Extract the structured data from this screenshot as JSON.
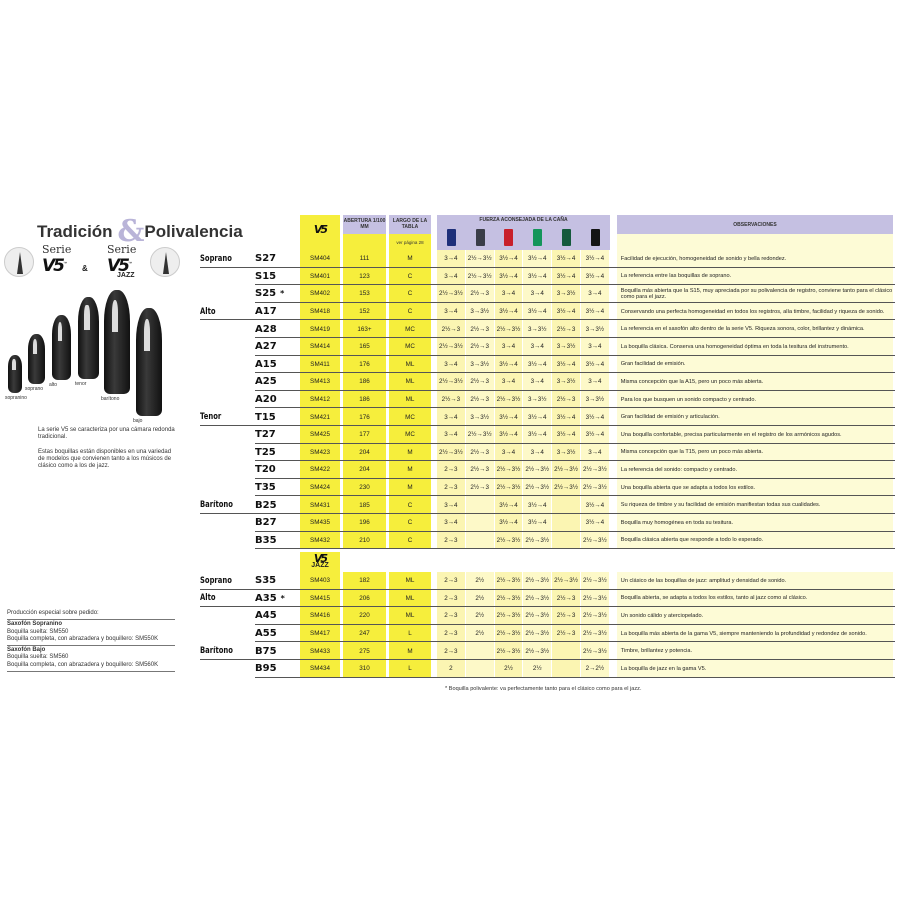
{
  "title": {
    "left": "Tradición",
    "amp": "&",
    "right": "Polivalencia"
  },
  "series": [
    {
      "serie": "Serie",
      "logo": "V5",
      "tm": "™",
      "jazz": ""
    },
    {
      "serie": "Serie",
      "logo": "V5",
      "tm": "™",
      "jazz": "JAZZ"
    }
  ],
  "series_join": "&",
  "mouthpieces": [
    "sopranino",
    "soprano",
    "alto",
    "tenor",
    "barítono",
    "bajo"
  ],
  "intro": [
    "La serie V5 se caracteriza por una cámara redonda tradicional.",
    "Estas boquillas están disponibles en una variedad de modelos que convienen tanto a los músicos de clásico como a los de jazz."
  ],
  "special": {
    "heading": "Producción especial sobre pedido:",
    "items": [
      {
        "name": "Saxofón Sopranino",
        "lines": [
          "Boquilla suelta: SM550",
          "Boquilla completa, con abrazadera y boquillero: SM550K"
        ]
      },
      {
        "name": "Saxofón Bajo",
        "lines": [
          "Boquilla suelta: SM560",
          "Boquilla completa, con abrazadera y boquillero: SM560K"
        ]
      }
    ]
  },
  "header": {
    "logo": "V5",
    "abertura": "ABERTURA 1/100 MM",
    "largo": "LARGO DE LA TABLA",
    "largo_note": "ver página 28",
    "fuerza": "FUERZA ACONSEJADA DE LA CAÑA",
    "observaciones": "OBSERVACIONES",
    "reeds": [
      {
        "icon": "reed-box-blue-icon",
        "color": "#1e2f7a"
      },
      {
        "icon": "reed-box-grey-icon",
        "color": "#3a3d48"
      },
      {
        "icon": "reed-box-red-icon",
        "color": "#c8202a"
      },
      {
        "icon": "reed-box-green-icon",
        "color": "#14955a"
      },
      {
        "icon": "reed-box-darkgreen-icon",
        "color": "#155a3c"
      },
      {
        "icon": "reed-box-black-icon",
        "color": "#141414"
      }
    ]
  },
  "rows": [
    {
      "family": "Soprano",
      "model": "S27",
      "star": "",
      "ref": "SM404",
      "ab": "111",
      "lg": "M",
      "reeds": [
        "3→4",
        "2½→3½",
        "3½→4",
        "3½→4",
        "3½→4",
        "3½→4"
      ],
      "obs": "Facilidad de ejecución, homogeneidad de sonido y bella redondez."
    },
    {
      "family": "",
      "model": "S15",
      "star": "",
      "ref": "SM401",
      "ab": "123",
      "lg": "C",
      "reeds": [
        "3→4",
        "2½→3½",
        "3½→4",
        "3½→4",
        "3½→4",
        "3½→4"
      ],
      "obs": "La referencia entre las boquillas de soprano."
    },
    {
      "family": "",
      "model": "S25",
      "star": "*",
      "ref": "SM402",
      "ab": "153",
      "lg": "C",
      "reeds": [
        "2½→3½",
        "2½→3",
        "3→4",
        "3→4",
        "3→3½",
        "3→4"
      ],
      "obs": "Boquilla más abierta que la S15, muy apreciada por su polivalencia de registro, conviene tanto para el clásico como para el jazz."
    },
    {
      "family": "Alto",
      "model": "A17",
      "star": "",
      "ref": "SM418",
      "ab": "152",
      "lg": "C",
      "reeds": [
        "3→4",
        "3→3½",
        "3½→4",
        "3½→4",
        "3½→4",
        "3½→4"
      ],
      "obs": "Conservando una perfecta homogeneidad en todos los registros, alía timbre, facilidad y riqueza de sonido."
    },
    {
      "family": "",
      "model": "A28",
      "star": "",
      "ref": "SM419",
      "ab": "163+",
      "lg": "MC",
      "reeds": [
        "2½→3",
        "2½→3",
        "2½→3½",
        "3→3½",
        "2½→3",
        "3→3½"
      ],
      "obs": "La referencia en el saxofón alto dentro de la serie V5. Riqueza sonora, color, brillantez y dinámica."
    },
    {
      "family": "",
      "model": "A27",
      "star": "",
      "ref": "SM414",
      "ab": "165",
      "lg": "MC",
      "reeds": [
        "2½→3½",
        "2½→3",
        "3→4",
        "3→4",
        "3→3½",
        "3→4"
      ],
      "obs": "La boquilla clásica. Conserva una homogeneidad óptima en toda la tesitura del instrumento."
    },
    {
      "family": "",
      "model": "A15",
      "star": "",
      "ref": "SM411",
      "ab": "176",
      "lg": "ML",
      "reeds": [
        "3→4",
        "3→3½",
        "3½→4",
        "3½→4",
        "3½→4",
        "3½→4"
      ],
      "obs": "Gran facilidad de emisión."
    },
    {
      "family": "",
      "model": "A25",
      "star": "",
      "ref": "SM413",
      "ab": "186",
      "lg": "ML",
      "reeds": [
        "2½→3½",
        "2½→3",
        "3→4",
        "3→4",
        "3→3½",
        "3→4"
      ],
      "obs": "Misma concepción que la A15, pero un poco más abierta."
    },
    {
      "family": "",
      "model": "A20",
      "star": "",
      "ref": "SM412",
      "ab": "186",
      "lg": "ML",
      "reeds": [
        "2½→3",
        "2½→3",
        "2½→3½",
        "3→3½",
        "2½→3",
        "3→3½"
      ],
      "obs": "Para los que busquen un sonido compacto y centrado."
    },
    {
      "family": "Tenor",
      "model": "T15",
      "star": "",
      "ref": "SM421",
      "ab": "176",
      "lg": "MC",
      "reeds": [
        "3→4",
        "3→3½",
        "3½→4",
        "3½→4",
        "3½→4",
        "3½→4"
      ],
      "obs": "Gran facilidad de emisión y articulación."
    },
    {
      "family": "",
      "model": "T27",
      "star": "",
      "ref": "SM425",
      "ab": "177",
      "lg": "MC",
      "reeds": [
        "3→4",
        "2½→3½",
        "3½→4",
        "3½→4",
        "3½→4",
        "3½→4"
      ],
      "obs": "Una boquilla confortable, precisa particularmente en el registro de los armónicos agudos."
    },
    {
      "family": "",
      "model": "T25",
      "star": "",
      "ref": "SM423",
      "ab": "204",
      "lg": "M",
      "reeds": [
        "2½→3½",
        "2½→3",
        "3→4",
        "3→4",
        "3→3½",
        "3→4"
      ],
      "obs": "Misma concepción que la T15, pero un poco más abierta."
    },
    {
      "family": "",
      "model": "T20",
      "star": "",
      "ref": "SM422",
      "ab": "204",
      "lg": "M",
      "reeds": [
        "2→3",
        "2½→3",
        "2½→3½",
        "2½→3½",
        "2½→3½",
        "2½→3½"
      ],
      "obs": "La referencia del sonido: compacto y centrado."
    },
    {
      "family": "",
      "model": "T35",
      "star": "",
      "ref": "SM424",
      "ab": "230",
      "lg": "M",
      "reeds": [
        "2→3",
        "2½→3",
        "2½→3½",
        "2½→3½",
        "2½→3½",
        "2½→3½"
      ],
      "obs": "Una boquilla abierta que se adapta a todos los estilos."
    },
    {
      "family": "Barítono",
      "model": "B25",
      "star": "",
      "ref": "SM431",
      "ab": "185",
      "lg": "C",
      "reeds": [
        "3→4",
        "",
        "3½→4",
        "3½→4",
        "",
        "3½→4"
      ],
      "obs": "Su riqueza de timbre y su facilidad de emisión manifiestan todas sus cualidades."
    },
    {
      "family": "",
      "model": "B27",
      "star": "",
      "ref": "SM435",
      "ab": "196",
      "lg": "C",
      "reeds": [
        "3→4",
        "",
        "3½→4",
        "3½→4",
        "",
        "3½→4"
      ],
      "obs": "Boquilla muy homogénea en toda su tesitura."
    },
    {
      "family": "",
      "model": "B35",
      "star": "",
      "ref": "SM432",
      "ab": "210",
      "lg": "C",
      "reeds": [
        "2→3",
        "",
        "2½→3½",
        "2½→3½",
        "",
        "2½→3½"
      ],
      "obs": "Boquilla clásica abierta que responde a todo lo esperado."
    }
  ],
  "jazz_header": {
    "logo": "V5",
    "sub": "JAZZ"
  },
  "jazz_rows": [
    {
      "family": "Soprano",
      "model": "S35",
      "star": "",
      "ref": "SM403",
      "ab": "182",
      "lg": "ML",
      "reeds": [
        "2→3",
        "2½",
        "2½→3½",
        "2½→3½",
        "2½→3½",
        "2½→3½"
      ],
      "obs": "Un clásico de las boquillas de jazz: amplitud y densidad de sonido."
    },
    {
      "family": "Alto",
      "model": "A35",
      "star": "*",
      "ref": "SM415",
      "ab": "206",
      "lg": "ML",
      "reeds": [
        "2→3",
        "2½",
        "2½→3½",
        "2½→3½",
        "2½→3",
        "2½→3½"
      ],
      "obs": "Boquilla abierta, se adapta a todos los estilos, tanto al jazz como al clásico."
    },
    {
      "family": "",
      "model": "A45",
      "star": "",
      "ref": "SM416",
      "ab": "220",
      "lg": "ML",
      "reeds": [
        "2→3",
        "2½",
        "2½→3½",
        "2½→3½",
        "2½→3",
        "2½→3½"
      ],
      "obs": "Un sonido cálido y aterciopelado."
    },
    {
      "family": "",
      "model": "A55",
      "star": "",
      "ref": "SM417",
      "ab": "247",
      "lg": "L",
      "reeds": [
        "2→3",
        "2½",
        "2½→3½",
        "2½→3½",
        "2½→3",
        "2½→3½"
      ],
      "obs": "La boquilla más abierta de la gama V5, siempre manteniendo la profundidad y redondez de sonido."
    },
    {
      "family": "Barítono",
      "model": "B75",
      "star": "",
      "ref": "SM433",
      "ab": "275",
      "lg": "M",
      "reeds": [
        "2→3",
        "",
        "2½→3½",
        "2½→3½",
        "",
        "2½→3½"
      ],
      "obs": "Timbre, brillantez y potencia."
    },
    {
      "family": "",
      "model": "B95",
      "star": "",
      "ref": "SM434",
      "ab": "310",
      "lg": "L",
      "reeds": [
        "2",
        "",
        "2½",
        "2½",
        "",
        "2→2½"
      ],
      "obs": "La boquilla de jazz en la gama V5."
    }
  ],
  "footnote": "* Boquilla polivalente: va perfectamente tanto para el clásico como para el jazz."
}
